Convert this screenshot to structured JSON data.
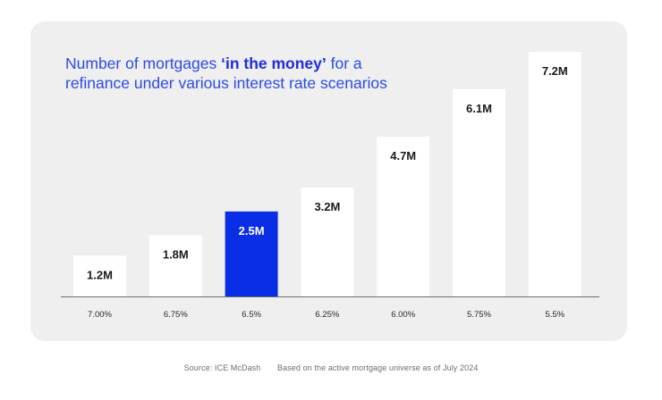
{
  "title": {
    "part1": "Number of mortgages ",
    "emphasis": "‘in the money’",
    "part2": " for a refinance under various interest rate scenarios"
  },
  "footer": {
    "source": "Source: ICE McDash",
    "note": "Based on the active mortgage universe as of July 2024"
  },
  "colors": {
    "bar": "#ffffff",
    "highlight": "#0a2ee6",
    "label": "#1a1a1a",
    "highlight_label": "#ffffff"
  },
  "chart_data": {
    "type": "bar",
    "title": "Number of mortgages ‘in the money’ for a refinance under various interest rate scenarios",
    "categories": [
      "7.00%",
      "6.75%",
      "6.5%",
      "6.25%",
      "6.00%",
      "5.75%",
      "5.5%"
    ],
    "values": [
      1.2,
      1.8,
      2.5,
      3.2,
      4.7,
      6.1,
      7.2
    ],
    "data_labels": [
      "1.2M",
      "1.8M",
      "2.5M",
      "3.2M",
      "4.7M",
      "6.1M",
      "7.2M"
    ],
    "highlight_index": 2,
    "xlabel": "",
    "ylabel": "",
    "ylim": [
      0,
      7.2
    ],
    "unit": "M",
    "grid": false
  }
}
